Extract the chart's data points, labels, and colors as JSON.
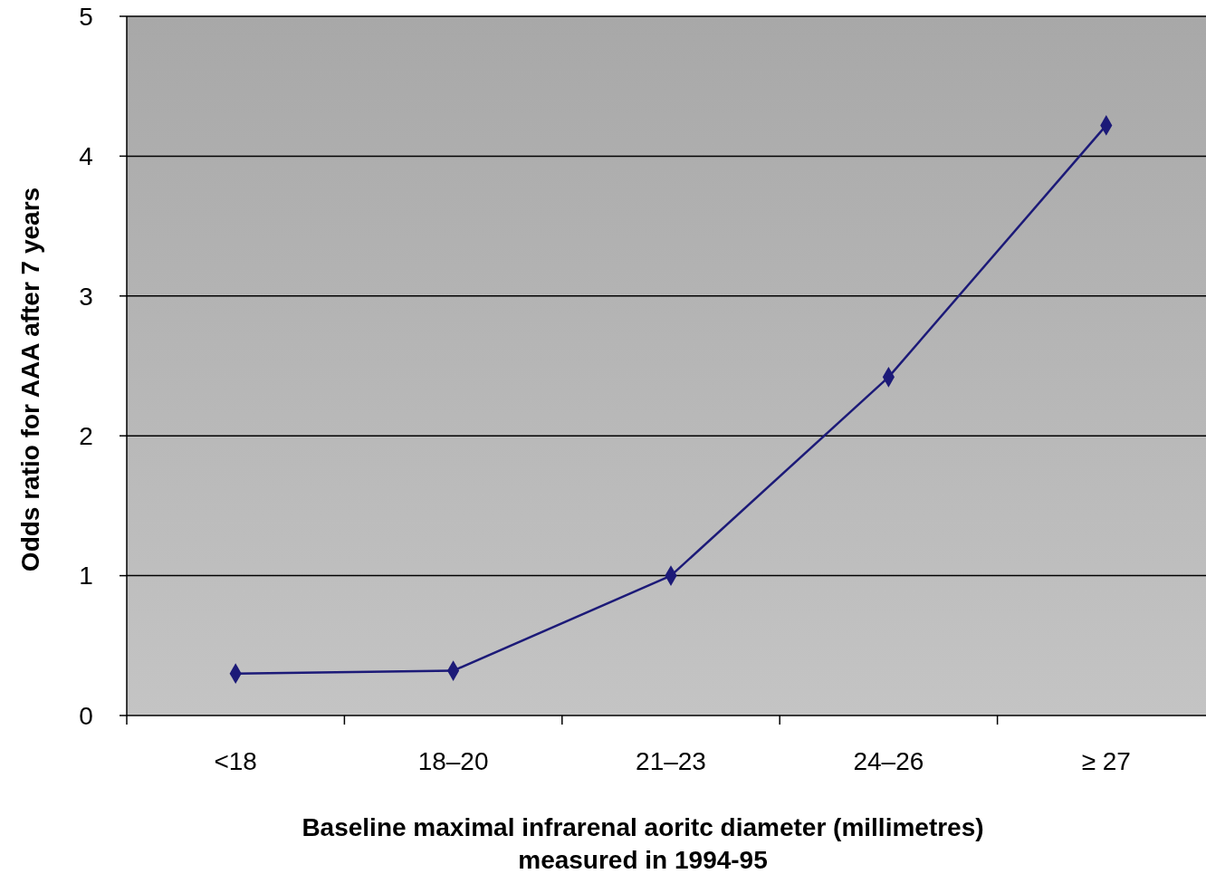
{
  "chart_data": {
    "type": "line",
    "xlabel": "Baseline maximal infrarenal aoritc diameter (millimetres)\nmeasured in 1994-95",
    "ylabel": "Odds ratio for AAA after 7 years",
    "categories": [
      "<18",
      "18–20",
      "21–23",
      "24–26",
      "≥ 27"
    ],
    "series": [
      {
        "color": "#1c1a78",
        "values": [
          0.3,
          0.32,
          1.0,
          2.42,
          4.22
        ]
      }
    ],
    "ylim": [
      0,
      5
    ],
    "yticks": [
      0,
      1,
      2,
      3,
      4,
      5
    ],
    "grid": "y",
    "marker": "diamond",
    "line_style": "solid"
  }
}
